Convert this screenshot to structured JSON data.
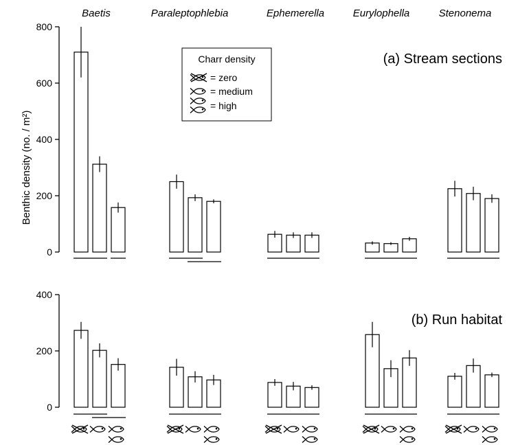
{
  "chart_data": [
    {
      "type": "bar",
      "panel": "(a) Stream sections",
      "title": "(a) Stream sections",
      "ylabel": "Benthic density (no. / m²)",
      "ylim": [
        0,
        800
      ],
      "yticks": [
        "0",
        "200",
        "400",
        "600",
        "800"
      ],
      "groups": [
        "Baetis",
        "Paraleptophlebia",
        "Ephemerella",
        "Eurylophella",
        "Stenonema"
      ],
      "series": [
        {
          "name": "zero",
          "values": [
            710,
            250,
            63,
            32,
            225
          ],
          "errors": [
            90,
            25,
            12,
            6,
            28
          ]
        },
        {
          "name": "medium",
          "values": [
            312,
            193,
            60,
            30,
            208
          ],
          "errors": [
            28,
            12,
            10,
            5,
            24
          ]
        },
        {
          "name": "high",
          "values": [
            158,
            180,
            60,
            47,
            190
          ],
          "errors": [
            18,
            7,
            10,
            7,
            15
          ]
        }
      ],
      "grouping_lines": [
        {
          "group": 0,
          "from": 0,
          "to": 1
        },
        {
          "group": 0,
          "from": 2,
          "to": 2
        },
        {
          "group": 1,
          "from": 0,
          "to": 1
        },
        {
          "group": 1,
          "from": 1,
          "to": 2
        },
        {
          "group": 2,
          "from": 0,
          "to": 2
        },
        {
          "group": 3,
          "from": 0,
          "to": 2
        },
        {
          "group": 4,
          "from": 0,
          "to": 2
        }
      ]
    },
    {
      "type": "bar",
      "panel": "(b) Run habitat",
      "title": "(b) Run habitat",
      "ylim": [
        0,
        400
      ],
      "yticks": [
        "0",
        "200",
        "400"
      ],
      "groups": [
        "Baetis",
        "Paraleptophlebia",
        "Ephemerella",
        "Eurylophella",
        "Stenonema"
      ],
      "series": [
        {
          "name": "zero",
          "values": [
            273,
            142,
            88,
            258,
            110
          ],
          "errors": [
            30,
            30,
            12,
            45,
            12
          ]
        },
        {
          "name": "medium",
          "values": [
            202,
            108,
            75,
            137,
            148
          ],
          "errors": [
            25,
            20,
            15,
            30,
            25
          ]
        },
        {
          "name": "high",
          "values": [
            152,
            97,
            70,
            175,
            115
          ],
          "errors": [
            22,
            18,
            8,
            28,
            8
          ]
        }
      ],
      "grouping_lines": [
        {
          "group": 0,
          "from": 0,
          "to": 1
        },
        {
          "group": 0,
          "from": 1,
          "to": 2
        },
        {
          "group": 1,
          "from": 0,
          "to": 2
        },
        {
          "group": 2,
          "from": 0,
          "to": 2
        },
        {
          "group": 3,
          "from": 0,
          "to": 2
        },
        {
          "group": 4,
          "from": 0,
          "to": 2
        }
      ]
    }
  ],
  "legend": {
    "title": "Charr density",
    "entries": [
      {
        "icon": "crossed-fish-icon",
        "label": "= zero"
      },
      {
        "icon": "fish-icon",
        "label": "= medium"
      },
      {
        "icon": "two-fish-icon",
        "label": "= high"
      }
    ]
  },
  "colors": {
    "ink": "#000000",
    "background": "#ffffff",
    "bar_fill": "#ffffff"
  }
}
